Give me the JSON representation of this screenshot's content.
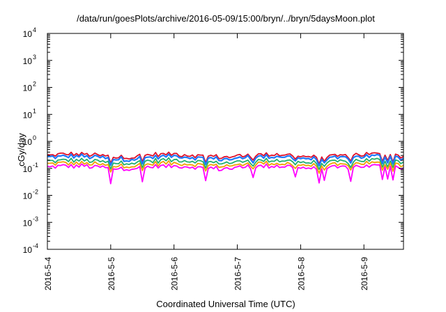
{
  "chart_data": {
    "type": "line",
    "title": "/data/run/goesPlots/archive/2016-05-09/15:00/bryn/../bryn/5daysMoon.plot",
    "xlabel": "Coordinated Universal Time (UTC)",
    "ylabel": "cGy/day",
    "x_tick_labels": [
      "2016-5-4",
      "2016-5-5",
      "2016-5-6",
      "2016-5-7",
      "2016-5-8",
      "2016-5-9"
    ],
    "xlim": [
      "2016-05-04 00:00",
      "2016-05-09 15:00"
    ],
    "y_scale": "log",
    "ylim": [
      0.0001,
      10000
    ],
    "y_ticks": [
      {
        "base": "10",
        "exp": "-4"
      },
      {
        "base": "10",
        "exp": "-3"
      },
      {
        "base": "10",
        "exp": "-2"
      },
      {
        "base": "10",
        "exp": "-1"
      },
      {
        "base": "10",
        "exp": "0"
      },
      {
        "base": "10",
        "exp": "1"
      },
      {
        "base": "10",
        "exp": "2"
      },
      {
        "base": "10",
        "exp": "3"
      },
      {
        "base": "10",
        "exp": "4"
      }
    ],
    "grid": false,
    "legend": "none",
    "series": [
      {
        "color": "#e0102a",
        "baseline": 0.3
      },
      {
        "color": "#1e78ff",
        "baseline": 0.25
      },
      {
        "color": "#20b070",
        "baseline": 0.18
      },
      {
        "color": "#f0a000",
        "baseline": 0.14
      },
      {
        "color": "#ff00ff",
        "baseline": 0.11
      }
    ]
  }
}
